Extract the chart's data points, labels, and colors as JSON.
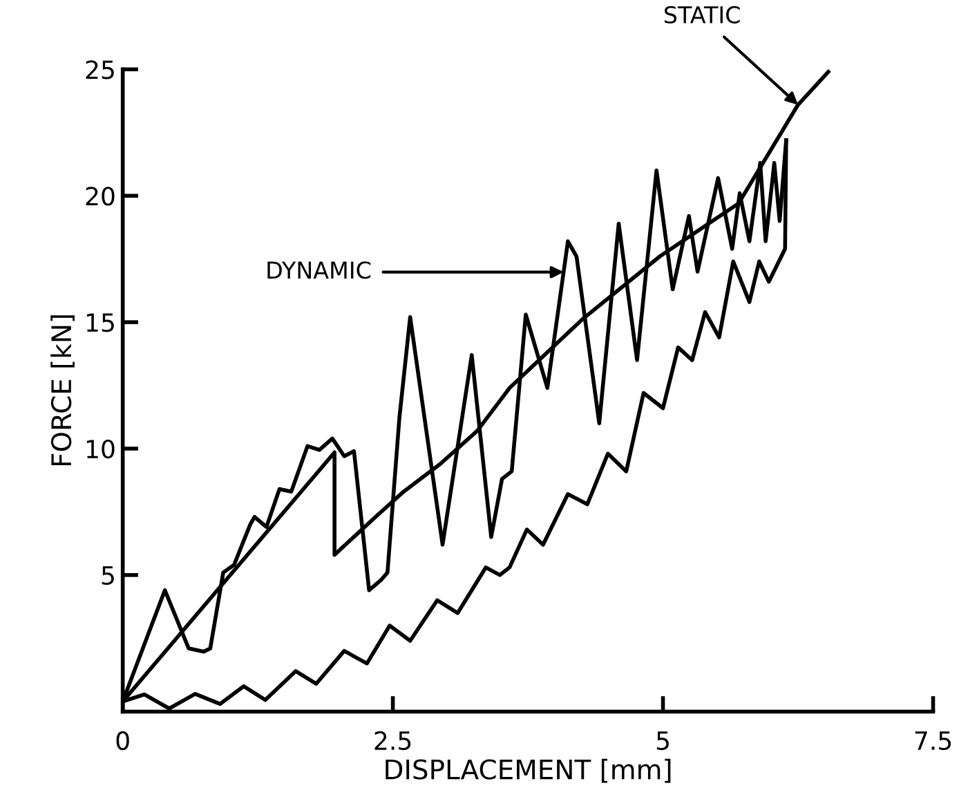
{
  "chart_data": {
    "type": "line",
    "xlabel": "DISPLACEMENT [mm]",
    "ylabel": "FORCE [kN]",
    "xlim": [
      0,
      7.5
    ],
    "xticks": [
      0,
      2.5,
      5,
      7.5
    ],
    "ylim": [
      -0.4,
      25
    ],
    "yticks": [
      5,
      10,
      15,
      20,
      25
    ],
    "grid": false,
    "legend": false,
    "marker": "none",
    "line_style": "solid",
    "series": [
      {
        "color": "#000000",
        "x": [
          0,
          1.96,
          1.96,
          2.34,
          2.6,
          2.94,
          3.28,
          3.51,
          3.58,
          4.25,
          4.97,
          5.7,
          6.25,
          6.53
        ],
        "values": [
          0,
          9.85,
          5.8,
          7.3,
          8.3,
          9.4,
          10.7,
          12.0,
          12.4,
          15.1,
          17.6,
          19.7,
          23.6,
          24.9
        ]
      },
      {
        "color": "#000000",
        "x": [
          0,
          0.39,
          0.61,
          0.75,
          0.81,
          0.93,
          1.03,
          1.18,
          1.22,
          1.33,
          1.45,
          1.56,
          1.71,
          1.82,
          1.94,
          2.05,
          2.14,
          2.28,
          2.39,
          2.45,
          2.56,
          2.66,
          2.96,
          3.23,
          3.41,
          3.51,
          3.6,
          3.73,
          3.93,
          4.12,
          4.2,
          4.41,
          4.59,
          4.76,
          4.94,
          5.09,
          5.24,
          5.32,
          5.51,
          5.64,
          5.71,
          5.8,
          5.9,
          5.95,
          6.03,
          6.08,
          6.14
        ],
        "values": [
          0,
          4.4,
          2.1,
          1.97,
          2.1,
          5.1,
          5.4,
          7.0,
          7.3,
          6.9,
          8.4,
          8.3,
          10.1,
          9.95,
          10.4,
          9.7,
          9.9,
          4.4,
          4.8,
          5.1,
          11.2,
          15.2,
          6.2,
          13.7,
          6.5,
          8.8,
          9.1,
          15.3,
          12.4,
          18.2,
          17.6,
          11.0,
          18.9,
          13.5,
          21.0,
          16.3,
          19.2,
          17.0,
          20.7,
          17.9,
          20.1,
          18.2,
          21.3,
          18.2,
          21.3,
          19.0,
          22.2
        ]
      },
      {
        "color": "#000000",
        "x": [
          0,
          0.2,
          0.43,
          0.67,
          0.9,
          1.12,
          1.32,
          1.6,
          1.79,
          2.05,
          2.26,
          2.47,
          2.66,
          2.91,
          3.1,
          3.36,
          3.49,
          3.58,
          3.74,
          3.89,
          4.12,
          4.3,
          4.49,
          4.66,
          4.82,
          5.0,
          5.14,
          5.27,
          5.39,
          5.52,
          5.65,
          5.8,
          5.89,
          5.98,
          6.13,
          6.14
        ],
        "values": [
          0,
          0.28,
          -0.28,
          0.3,
          -0.1,
          0.6,
          0.06,
          1.2,
          0.7,
          2.0,
          1.5,
          3.0,
          2.4,
          4.0,
          3.5,
          5.3,
          5.0,
          5.3,
          6.8,
          6.2,
          8.2,
          7.8,
          9.8,
          9.1,
          12.2,
          11.6,
          14.0,
          13.5,
          15.4,
          14.4,
          17.4,
          15.8,
          17.4,
          16.6,
          17.9,
          22.2
        ]
      }
    ],
    "annotations": [
      {
        "text": "DYNAMIC",
        "x": 4.08,
        "y": 16.98
      },
      {
        "text": "STATIC",
        "x": 6.25,
        "y": 23.6
      }
    ]
  }
}
